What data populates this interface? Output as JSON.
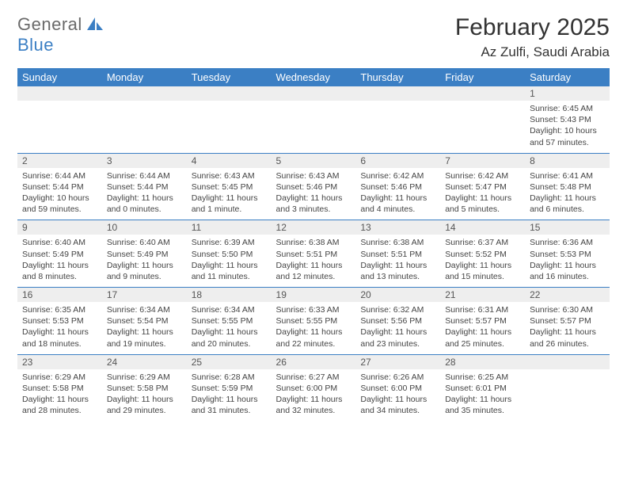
{
  "brand": {
    "word1": "General",
    "word2": "Blue"
  },
  "title": "February 2025",
  "location": "Az Zulfi, Saudi Arabia",
  "colors": {
    "header_bg": "#3b7fc4",
    "header_text": "#ffffff",
    "daynum_bg": "#eeeeee",
    "rule": "#3b7fc4",
    "body_text": "#444444",
    "logo_gray": "#6a6a6a",
    "logo_blue": "#3b7fc4"
  },
  "weekdays": [
    "Sunday",
    "Monday",
    "Tuesday",
    "Wednesday",
    "Thursday",
    "Friday",
    "Saturday"
  ],
  "weeks": [
    {
      "nums": [
        "",
        "",
        "",
        "",
        "",
        "",
        "1"
      ],
      "cells": [
        {
          "sunrise": "",
          "sunset": "",
          "daylight": ""
        },
        {
          "sunrise": "",
          "sunset": "",
          "daylight": ""
        },
        {
          "sunrise": "",
          "sunset": "",
          "daylight": ""
        },
        {
          "sunrise": "",
          "sunset": "",
          "daylight": ""
        },
        {
          "sunrise": "",
          "sunset": "",
          "daylight": ""
        },
        {
          "sunrise": "",
          "sunset": "",
          "daylight": ""
        },
        {
          "sunrise": "Sunrise: 6:45 AM",
          "sunset": "Sunset: 5:43 PM",
          "daylight": "Daylight: 10 hours and 57 minutes."
        }
      ]
    },
    {
      "nums": [
        "2",
        "3",
        "4",
        "5",
        "6",
        "7",
        "8"
      ],
      "cells": [
        {
          "sunrise": "Sunrise: 6:44 AM",
          "sunset": "Sunset: 5:44 PM",
          "daylight": "Daylight: 10 hours and 59 minutes."
        },
        {
          "sunrise": "Sunrise: 6:44 AM",
          "sunset": "Sunset: 5:44 PM",
          "daylight": "Daylight: 11 hours and 0 minutes."
        },
        {
          "sunrise": "Sunrise: 6:43 AM",
          "sunset": "Sunset: 5:45 PM",
          "daylight": "Daylight: 11 hours and 1 minute."
        },
        {
          "sunrise": "Sunrise: 6:43 AM",
          "sunset": "Sunset: 5:46 PM",
          "daylight": "Daylight: 11 hours and 3 minutes."
        },
        {
          "sunrise": "Sunrise: 6:42 AM",
          "sunset": "Sunset: 5:46 PM",
          "daylight": "Daylight: 11 hours and 4 minutes."
        },
        {
          "sunrise": "Sunrise: 6:42 AM",
          "sunset": "Sunset: 5:47 PM",
          "daylight": "Daylight: 11 hours and 5 minutes."
        },
        {
          "sunrise": "Sunrise: 6:41 AM",
          "sunset": "Sunset: 5:48 PM",
          "daylight": "Daylight: 11 hours and 6 minutes."
        }
      ]
    },
    {
      "nums": [
        "9",
        "10",
        "11",
        "12",
        "13",
        "14",
        "15"
      ],
      "cells": [
        {
          "sunrise": "Sunrise: 6:40 AM",
          "sunset": "Sunset: 5:49 PM",
          "daylight": "Daylight: 11 hours and 8 minutes."
        },
        {
          "sunrise": "Sunrise: 6:40 AM",
          "sunset": "Sunset: 5:49 PM",
          "daylight": "Daylight: 11 hours and 9 minutes."
        },
        {
          "sunrise": "Sunrise: 6:39 AM",
          "sunset": "Sunset: 5:50 PM",
          "daylight": "Daylight: 11 hours and 11 minutes."
        },
        {
          "sunrise": "Sunrise: 6:38 AM",
          "sunset": "Sunset: 5:51 PM",
          "daylight": "Daylight: 11 hours and 12 minutes."
        },
        {
          "sunrise": "Sunrise: 6:38 AM",
          "sunset": "Sunset: 5:51 PM",
          "daylight": "Daylight: 11 hours and 13 minutes."
        },
        {
          "sunrise": "Sunrise: 6:37 AM",
          "sunset": "Sunset: 5:52 PM",
          "daylight": "Daylight: 11 hours and 15 minutes."
        },
        {
          "sunrise": "Sunrise: 6:36 AM",
          "sunset": "Sunset: 5:53 PM",
          "daylight": "Daylight: 11 hours and 16 minutes."
        }
      ]
    },
    {
      "nums": [
        "16",
        "17",
        "18",
        "19",
        "20",
        "21",
        "22"
      ],
      "cells": [
        {
          "sunrise": "Sunrise: 6:35 AM",
          "sunset": "Sunset: 5:53 PM",
          "daylight": "Daylight: 11 hours and 18 minutes."
        },
        {
          "sunrise": "Sunrise: 6:34 AM",
          "sunset": "Sunset: 5:54 PM",
          "daylight": "Daylight: 11 hours and 19 minutes."
        },
        {
          "sunrise": "Sunrise: 6:34 AM",
          "sunset": "Sunset: 5:55 PM",
          "daylight": "Daylight: 11 hours and 20 minutes."
        },
        {
          "sunrise": "Sunrise: 6:33 AM",
          "sunset": "Sunset: 5:55 PM",
          "daylight": "Daylight: 11 hours and 22 minutes."
        },
        {
          "sunrise": "Sunrise: 6:32 AM",
          "sunset": "Sunset: 5:56 PM",
          "daylight": "Daylight: 11 hours and 23 minutes."
        },
        {
          "sunrise": "Sunrise: 6:31 AM",
          "sunset": "Sunset: 5:57 PM",
          "daylight": "Daylight: 11 hours and 25 minutes."
        },
        {
          "sunrise": "Sunrise: 6:30 AM",
          "sunset": "Sunset: 5:57 PM",
          "daylight": "Daylight: 11 hours and 26 minutes."
        }
      ]
    },
    {
      "nums": [
        "23",
        "24",
        "25",
        "26",
        "27",
        "28",
        ""
      ],
      "cells": [
        {
          "sunrise": "Sunrise: 6:29 AM",
          "sunset": "Sunset: 5:58 PM",
          "daylight": "Daylight: 11 hours and 28 minutes."
        },
        {
          "sunrise": "Sunrise: 6:29 AM",
          "sunset": "Sunset: 5:58 PM",
          "daylight": "Daylight: 11 hours and 29 minutes."
        },
        {
          "sunrise": "Sunrise: 6:28 AM",
          "sunset": "Sunset: 5:59 PM",
          "daylight": "Daylight: 11 hours and 31 minutes."
        },
        {
          "sunrise": "Sunrise: 6:27 AM",
          "sunset": "Sunset: 6:00 PM",
          "daylight": "Daylight: 11 hours and 32 minutes."
        },
        {
          "sunrise": "Sunrise: 6:26 AM",
          "sunset": "Sunset: 6:00 PM",
          "daylight": "Daylight: 11 hours and 34 minutes."
        },
        {
          "sunrise": "Sunrise: 6:25 AM",
          "sunset": "Sunset: 6:01 PM",
          "daylight": "Daylight: 11 hours and 35 minutes."
        },
        {
          "sunrise": "",
          "sunset": "",
          "daylight": ""
        }
      ]
    }
  ]
}
